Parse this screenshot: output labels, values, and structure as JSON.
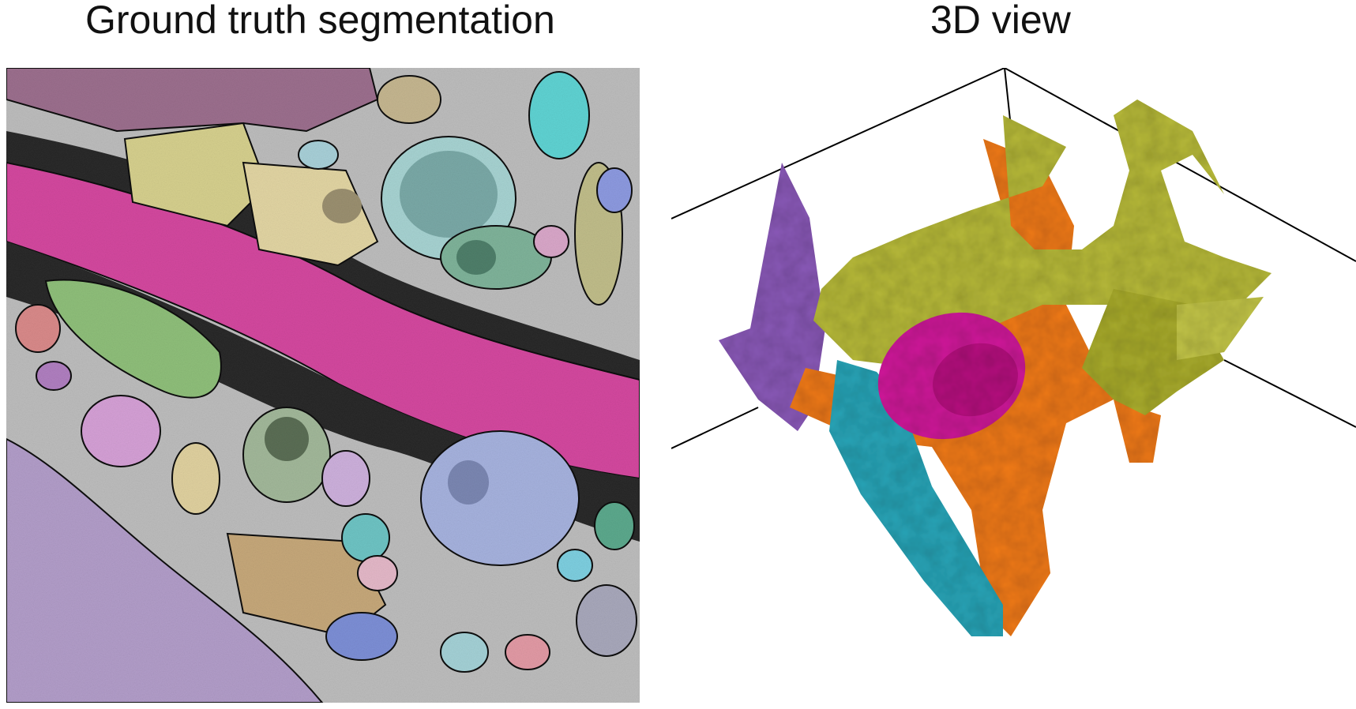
{
  "left_panel": {
    "title": "Ground truth segmentation"
  },
  "right_panel": {
    "title": "3D view"
  },
  "colors": {
    "membrane": "#1a1a1a",
    "em_background": "#c8c8c8",
    "myelin_band": "#d63e9f",
    "axon_purple_large": "#b09ac8",
    "lightblue_cell": "#a9d6d8",
    "olive": "#b7ba3a",
    "orange": "#f07a1a",
    "magenta": "#cf1e9a",
    "teal": "#2aa5b8",
    "violet": "#8a5ab8"
  },
  "icons": {
    "left": "em-segmentation-image",
    "right": "3d-rendering"
  }
}
